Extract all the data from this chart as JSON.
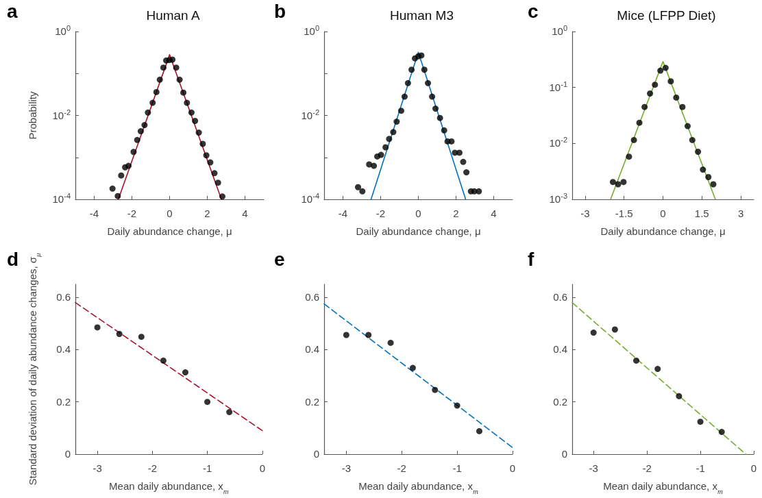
{
  "chart_data": [
    {
      "type": "scatter",
      "title": "Human A",
      "xlabel": "Daily abundance change, μ",
      "ylabel": "Probability",
      "annotations": [
        "a"
      ],
      "log": "y",
      "xlim": [
        -5,
        5
      ],
      "xticks": [
        -4,
        -2,
        0,
        2,
        4
      ],
      "ylim": [
        0.0001,
        1
      ],
      "yticks": [
        {
          "value": 1,
          "label": "10$^{0}$"
        },
        {
          "value": 0.1,
          "label": null
        },
        {
          "value": 0.01,
          "label": "10$^{-2}$"
        },
        {
          "value": 0.001,
          "label": null
        },
        {
          "value": 0.0001,
          "label": "10$^{-4}$"
        }
      ],
      "series": [
        {
          "type": "scatter",
          "marker": "circle",
          "color": "#000000",
          "x": [
            -3.03,
            -2.75,
            -2.57,
            -2.36,
            -2.18,
            -1.91,
            -1.72,
            -1.53,
            -1.33,
            -1.15,
            -0.9,
            -0.7,
            -0.52,
            -0.33,
            -0.18,
            -0.01,
            0.15,
            0.35,
            0.53,
            0.73,
            0.92,
            1.16,
            1.35,
            1.55,
            1.76,
            1.95,
            2.16,
            2.38,
            2.57,
            2.8
          ],
          "values": [
            0.00018,
            0.00012,
            0.00037,
            0.00058,
            0.00063,
            0.00135,
            0.0026,
            0.0042,
            0.0059,
            0.0117,
            0.02,
            0.036,
            0.071,
            0.138,
            0.204,
            0.209,
            0.214,
            0.138,
            0.071,
            0.035,
            0.02,
            0.0117,
            0.0074,
            0.0039,
            0.0021,
            0.00112,
            0.00076,
            0.00042,
            0.00025,
            0.000117
          ]
        },
        {
          "type": "line",
          "marker": "none",
          "line_style": "solid",
          "color": "#a2142f",
          "x": [
            -2.72,
            0,
            2.75
          ],
          "values": [
            0.0001,
            0.28,
            0.0001
          ]
        }
      ]
    },
    {
      "type": "scatter",
      "title": "Human M3",
      "xlabel": "Daily abundance change, μ",
      "annotations": [
        "b"
      ],
      "log": "y",
      "xlim": [
        -5,
        5
      ],
      "xticks": [
        -4,
        -2,
        0,
        2,
        4
      ],
      "ylim": [
        0.0001,
        1
      ],
      "yticks": [
        {
          "value": 1,
          "label": "10$^{0}$"
        },
        {
          "value": 0.1,
          "label": null
        },
        {
          "value": 0.01,
          "label": "10$^{-2}$"
        },
        {
          "value": 0.001,
          "label": null
        },
        {
          "value": 0.0001,
          "label": "10$^{-4}$"
        }
      ],
      "series": [
        {
          "type": "scatter",
          "marker": "circle",
          "color": "#000000",
          "x": [
            -3.2,
            -2.97,
            -2.61,
            -2.36,
            -2.18,
            -1.98,
            -1.74,
            -1.55,
            -1.33,
            -1.15,
            -0.91,
            -0.73,
            -0.55,
            -0.36,
            -0.18,
            0,
            0.16,
            0.32,
            0.51,
            0.73,
            0.91,
            1.15,
            1.37,
            1.55,
            1.76,
            1.94,
            2.18,
            2.38,
            2.55,
            2.79,
            2.97,
            3.21
          ],
          "values": [
            0.000195,
            0.000155,
            0.00068,
            0.00063,
            0.00105,
            0.00115,
            0.00174,
            0.00275,
            0.004,
            0.0071,
            0.0129,
            0.028,
            0.059,
            0.123,
            0.229,
            0.257,
            0.269,
            0.123,
            0.059,
            0.028,
            0.0145,
            0.0087,
            0.0044,
            0.0024,
            0.0024,
            0.00129,
            0.00129,
            0.00078,
            0.00044,
            0.000155,
            0.000155,
            0.000155
          ]
        },
        {
          "type": "line",
          "marker": "none",
          "line_style": "solid",
          "color": "#0072bd",
          "x": [
            -2.51,
            0,
            2.51
          ],
          "values": [
            0.0001,
            0.32,
            0.0001
          ]
        }
      ]
    },
    {
      "type": "scatter",
      "title": "Mice (LFPP Diet)",
      "xlabel": "Daily abundance change, μ",
      "annotations": [
        "c"
      ],
      "log": "y",
      "xlim": [
        -3.5,
        3.5
      ],
      "xticks": [
        -3,
        -1.5,
        0,
        1.5,
        3
      ],
      "ylim": [
        0.001,
        1
      ],
      "yticks": [
        {
          "value": 1,
          "label": "10$^{0}$"
        },
        {
          "value": 0.1,
          "label": "10$^{-1}$"
        },
        {
          "value": 0.01,
          "label": "10$^{-2}$"
        },
        {
          "value": 0.001,
          "label": "10$^{-3}$"
        }
      ],
      "series": [
        {
          "type": "scatter",
          "marker": "circle",
          "color": "#000000",
          "x": [
            -1.93,
            -1.73,
            -1.52,
            -1.31,
            -1.12,
            -0.91,
            -0.71,
            -0.5,
            -0.31,
            -0.1,
            0.1,
            0.3,
            0.51,
            0.75,
            0.95,
            1.13,
            1.35,
            1.54,
            1.75,
            1.94
          ],
          "values": [
            0.00204,
            0.00186,
            0.00204,
            0.0058,
            0.0115,
            0.0234,
            0.0447,
            0.078,
            0.112,
            0.2,
            0.224,
            0.129,
            0.066,
            0.0447,
            0.0204,
            0.0115,
            0.0071,
            0.0034,
            0.0025,
            0.00186
          ]
        },
        {
          "type": "line",
          "marker": "none",
          "line_style": "solid",
          "color": "#77ac30",
          "x": [
            -2.02,
            0,
            2.02
          ],
          "values": [
            0.001,
            0.29,
            0.001
          ]
        }
      ]
    },
    {
      "type": "scatter",
      "xlabel": "Mean daily abundance, x$_{m}$",
      "ylabel": "Standard deviation of daily abundance changes, σ$_{μ}$",
      "annotations": [
        "d"
      ],
      "xlim": [
        -3.4,
        0
      ],
      "xticks": [
        -3,
        -2,
        -1,
        0
      ],
      "ylim": [
        0,
        0.65
      ],
      "yticks": [
        0,
        0.2,
        0.4,
        0.6
      ],
      "series": [
        {
          "type": "scatter",
          "marker": "circle",
          "color": "#000000",
          "x": [
            -3,
            -2.6,
            -2.2,
            -1.8,
            -1.4,
            -1,
            -0.6
          ],
          "values": [
            0.485,
            0.46,
            0.449,
            0.358,
            0.313,
            0.2,
            0.161
          ]
        },
        {
          "type": "line",
          "marker": "none",
          "line_style": "dashed",
          "color": "#a2142f",
          "x": [
            -3.4,
            0
          ],
          "values": [
            0.58,
            0.09
          ]
        }
      ]
    },
    {
      "type": "scatter",
      "xlabel": "Mean daily abundance, x$_{m}$",
      "annotations": [
        "e"
      ],
      "xlim": [
        -3.4,
        0
      ],
      "xticks": [
        -3,
        -2,
        -1,
        0
      ],
      "ylim": [
        0,
        0.65
      ],
      "yticks": [
        0,
        0.2,
        0.4,
        0.6
      ],
      "series": [
        {
          "type": "scatter",
          "marker": "circle",
          "color": "#000000",
          "x": [
            -3,
            -2.6,
            -2.2,
            -1.8,
            -1.4,
            -1,
            -0.6
          ],
          "values": [
            0.456,
            0.456,
            0.426,
            0.33,
            0.246,
            0.186,
            0.088
          ]
        },
        {
          "type": "line",
          "marker": "none",
          "line_style": "dashed",
          "color": "#0072bd",
          "x": [
            -3.4,
            0
          ],
          "values": [
            0.575,
            0.025
          ]
        }
      ]
    },
    {
      "type": "scatter",
      "xlabel": "Mean daily abundance, x$_{m}$",
      "annotations": [
        "f"
      ],
      "xlim": [
        -3.4,
        0
      ],
      "xticks": [
        -3,
        -2,
        -1,
        0
      ],
      "ylim": [
        0,
        0.65
      ],
      "yticks": [
        0,
        0.2,
        0.4,
        0.6
      ],
      "series": [
        {
          "type": "scatter",
          "marker": "circle",
          "color": "#000000",
          "x": [
            -3,
            -2.6,
            -2.2,
            -1.8,
            -1.4,
            -1,
            -0.6
          ],
          "values": [
            0.465,
            0.477,
            0.358,
            0.326,
            0.222,
            0.124,
            0.085
          ]
        },
        {
          "type": "line",
          "marker": "none",
          "line_style": "dashed",
          "color": "#77ac30",
          "x": [
            -3.4,
            -0.15
          ],
          "values": [
            0.58,
            0
          ]
        }
      ]
    }
  ]
}
